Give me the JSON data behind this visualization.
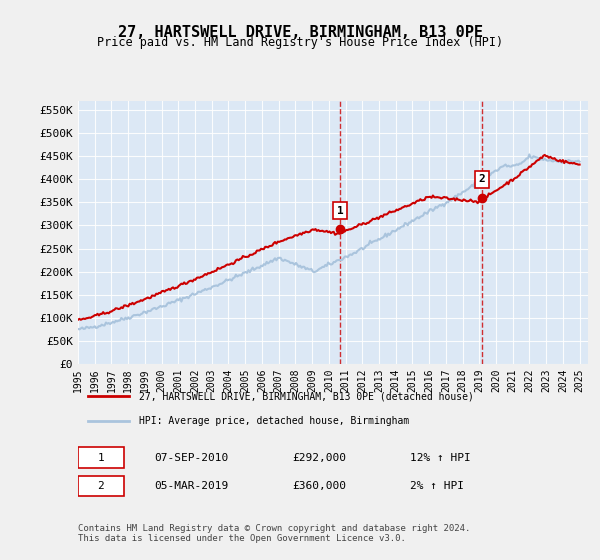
{
  "title": "27, HARTSWELL DRIVE, BIRMINGHAM, B13 0PE",
  "subtitle": "Price paid vs. HM Land Registry's House Price Index (HPI)",
  "ylabel_ticks": [
    "£0",
    "£50K",
    "£100K",
    "£150K",
    "£200K",
    "£250K",
    "£300K",
    "£350K",
    "£400K",
    "£450K",
    "£500K",
    "£550K"
  ],
  "ytick_values": [
    0,
    50000,
    100000,
    150000,
    200000,
    250000,
    300000,
    350000,
    400000,
    450000,
    500000,
    550000
  ],
  "ylim": [
    0,
    570000
  ],
  "legend_line1": "27, HARTSWELL DRIVE, BIRMINGHAM, B13 0PE (detached house)",
  "legend_line2": "HPI: Average price, detached house, Birmingham",
  "sale1_label": "1",
  "sale1_date": "07-SEP-2010",
  "sale1_price": "£292,000",
  "sale1_hpi": "12% ↑ HPI",
  "sale2_label": "2",
  "sale2_date": "05-MAR-2019",
  "sale2_price": "£360,000",
  "sale2_hpi": "2% ↑ HPI",
  "footer": "Contains HM Land Registry data © Crown copyright and database right 2024.\nThis data is licensed under the Open Government Licence v3.0.",
  "sale1_color": "#cc0000",
  "sale2_color": "#cc0000",
  "hpi_color": "#aac4dd",
  "property_color": "#cc0000",
  "vline_color": "#cc0000",
  "background_color": "#e8f0f8",
  "plot_bg": "#dce8f5",
  "grid_color": "#ffffff"
}
